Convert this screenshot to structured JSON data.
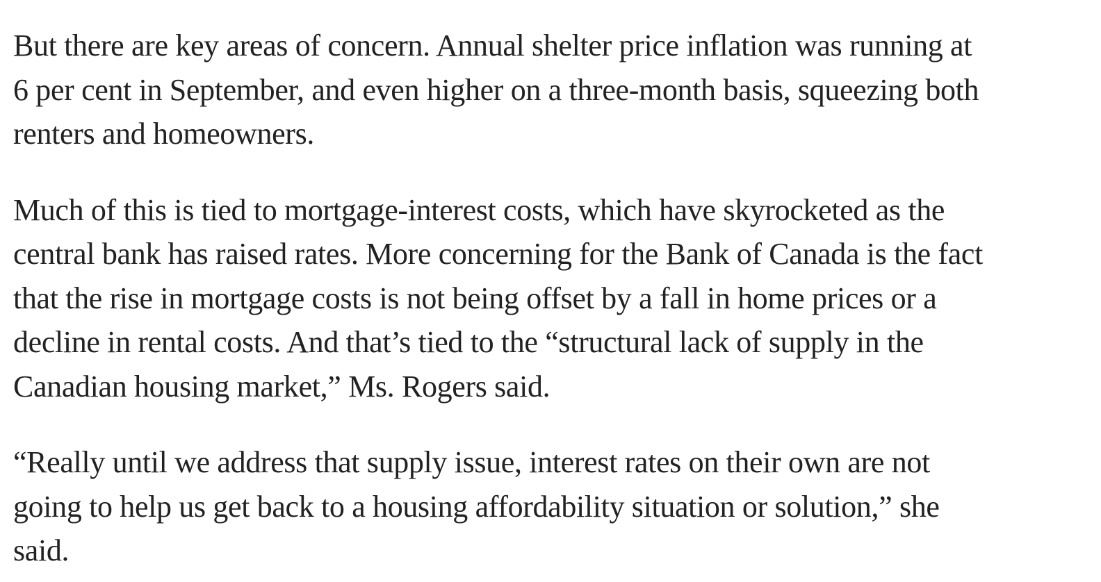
{
  "article": {
    "paragraphs": [
      {
        "lines": [
          "But there are key areas of concern. Annual shelter price inflation was running at",
          "6 per cent in September, and even higher on a three-month basis, squeezing both",
          "renters and homeowners."
        ]
      },
      {
        "lines": [
          "Much of this is tied to mortgage-interest costs, which have skyrocketed as the",
          "central bank has raised rates. More concerning for the Bank of Canada is the fact",
          "that the rise in mortgage costs is not being offset by a fall in home prices or a",
          "decline in rental costs. And that’s tied to the “structural lack of supply in the",
          "Canadian housing market,” Ms. Rogers said."
        ]
      },
      {
        "lines": [
          "“Really until we address that supply issue, interest rates on their own are not",
          "going to help us get back to a housing affordability situation or solution,” she",
          "said."
        ]
      }
    ]
  }
}
